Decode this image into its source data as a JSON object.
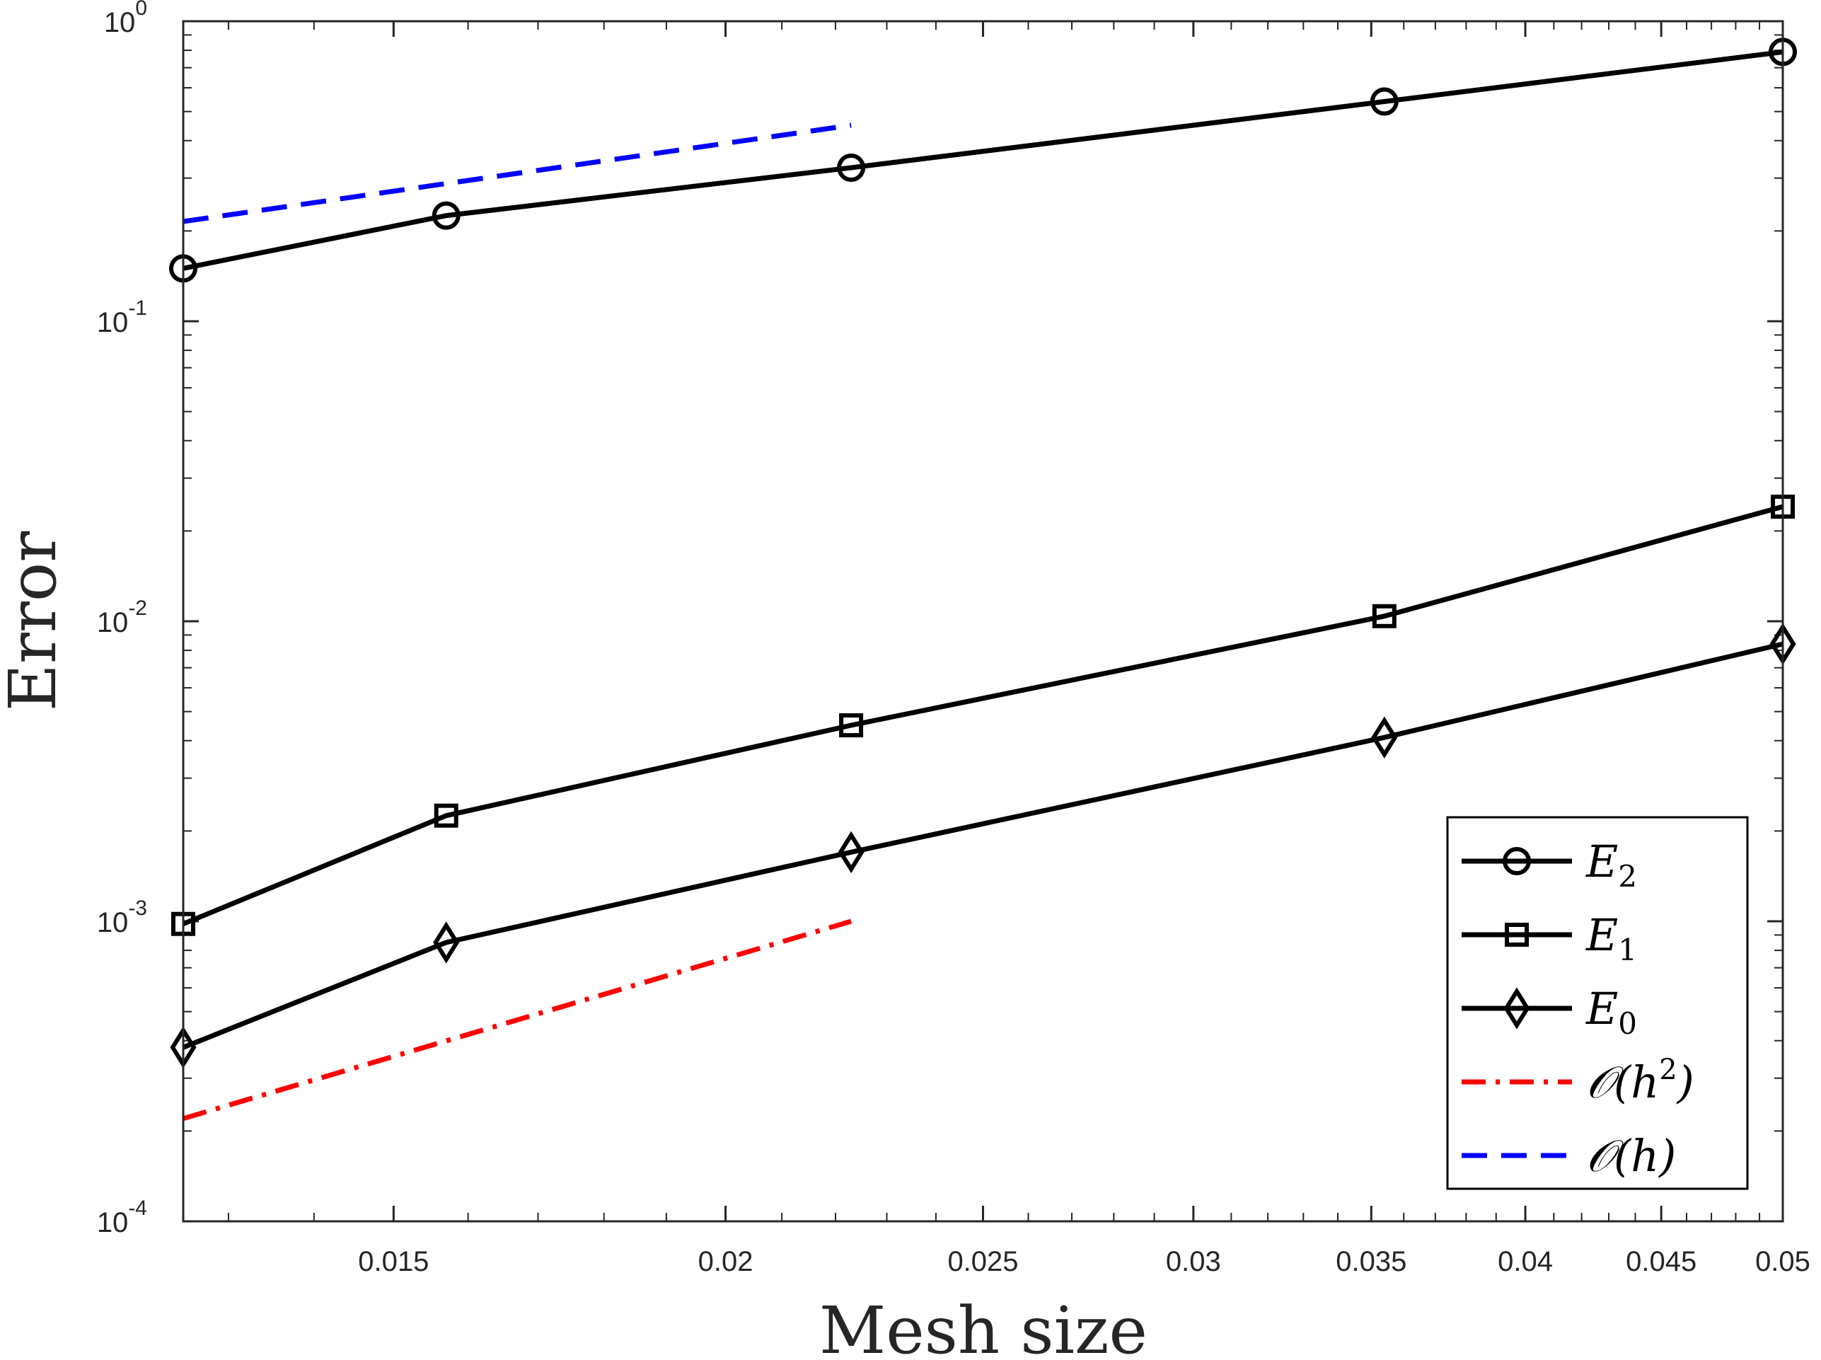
{
  "chart_data": {
    "type": "line",
    "xscale": "log",
    "yscale": "log",
    "xlabel": "Mesh size",
    "ylabel": "Error",
    "xlim": [
      0.0125,
      0.05
    ],
    "ylim": [
      0.0001,
      1
    ],
    "xticks": [
      0.015,
      0.02,
      0.025,
      0.03,
      0.035,
      0.04,
      0.045,
      0.05
    ],
    "xtick_labels": [
      "0.015",
      "0.02",
      "0.025",
      "0.03",
      "0.035",
      "0.04",
      "0.045",
      "0.05"
    ],
    "yticks": [
      {
        "value": 1,
        "base": "10",
        "exp": "0"
      },
      {
        "value": 0.1,
        "base": "10",
        "exp": "-1"
      },
      {
        "value": 0.01,
        "base": "10",
        "exp": "-2"
      },
      {
        "value": 0.001,
        "base": "10",
        "exp": "-3"
      },
      {
        "value": 0.0001,
        "base": "10",
        "exp": "-4"
      }
    ],
    "series": [
      {
        "name": "E2",
        "label_main": "E",
        "label_sub": "2",
        "marker": "circle",
        "color": "#000000",
        "style": "solid",
        "x": [
          0.0125,
          0.0157,
          0.0223,
          0.0354,
          0.05
        ],
        "y": [
          0.15,
          0.225,
          0.325,
          0.54,
          0.79
        ]
      },
      {
        "name": "E1",
        "label_main": "E",
        "label_sub": "1",
        "marker": "square",
        "color": "#000000",
        "style": "solid",
        "x": [
          0.0125,
          0.0157,
          0.0223,
          0.0354,
          0.05
        ],
        "y": [
          0.00098,
          0.00225,
          0.0045,
          0.0104,
          0.0241
        ]
      },
      {
        "name": "E0",
        "label_main": "E",
        "label_sub": "0",
        "marker": "diamond",
        "color": "#000000",
        "style": "solid",
        "x": [
          0.0125,
          0.0157,
          0.0223,
          0.0354,
          0.05
        ],
        "y": [
          0.00038,
          0.00085,
          0.0017,
          0.0041,
          0.0084
        ]
      },
      {
        "name": "O(h^2)",
        "label_main": "𝒪(h",
        "label_sup": "2",
        "label_end": ")",
        "marker": "none",
        "color": "#ff0000",
        "style": "dashdot",
        "x": [
          0.0125,
          0.0223
        ],
        "y": [
          0.00022,
          0.001
        ]
      },
      {
        "name": "O(h)",
        "label_main": "𝒪(h)",
        "marker": "none",
        "color": "#0000ff",
        "style": "dashed",
        "x": [
          0.0125,
          0.0223
        ],
        "y": [
          0.215,
          0.45
        ]
      }
    ],
    "legend": "bottom-right",
    "grid": false
  }
}
